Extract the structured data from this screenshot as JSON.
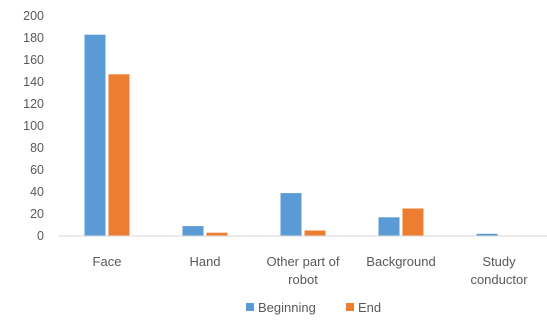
{
  "chart_data": {
    "type": "bar",
    "title": "",
    "xlabel": "",
    "ylabel": "",
    "categories": [
      [
        "Face"
      ],
      [
        "Hand"
      ],
      [
        "Other part of",
        "robot"
      ],
      [
        "Background"
      ],
      [
        "Study",
        "conductor"
      ]
    ],
    "series": [
      {
        "name": "Beginning",
        "color": "#5B9BD5",
        "values": [
          183,
          9,
          39,
          17,
          2
        ]
      },
      {
        "name": "End",
        "color": "#ED7D31",
        "values": [
          147,
          3,
          5,
          25,
          0
        ]
      }
    ],
    "ylim": [
      0,
      200
    ],
    "yticks": [
      0,
      20,
      40,
      60,
      80,
      100,
      120,
      140,
      160,
      180,
      200
    ],
    "grid": false,
    "legend_position": "bottom"
  }
}
